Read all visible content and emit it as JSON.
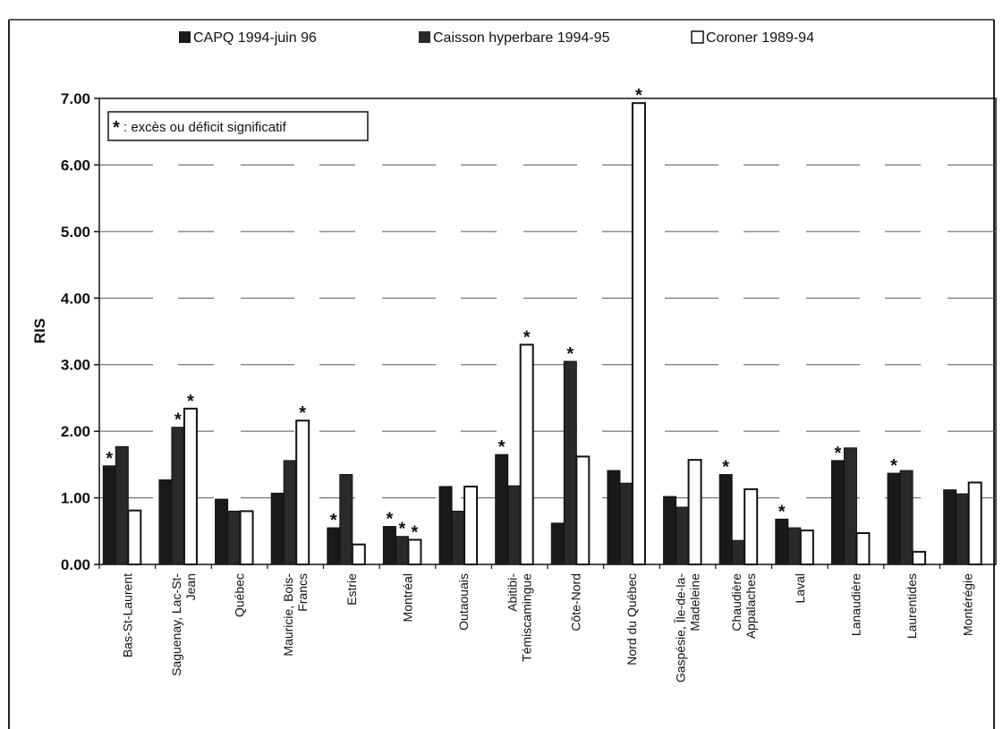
{
  "chart_data": {
    "type": "bar",
    "title": "",
    "xlabel": "",
    "ylabel": "RIS",
    "ylim": [
      0,
      7
    ],
    "yticks": [
      "0.00",
      "1.00",
      "2.00",
      "3.00",
      "4.00",
      "5.00",
      "6.00",
      "7.00"
    ],
    "grid": true,
    "legend_position": "top",
    "annotation": {
      "symbol": "*",
      "text": ": excès ou déficit significatif"
    },
    "categories": [
      "Bas-St-Laurent",
      "Saguenay, Lac-St-Jean",
      "Québec",
      "Mauricie, Bois-Francs",
      "Estrie",
      "Montréal",
      "Outaouais",
      "Abitibi-Témiscamingue",
      "Côte-Nord",
      "Nord du Québec",
      "Gaspésie, Île-de-la-Madeleine",
      "Chaudière Appalaches",
      "Laval",
      "Lanaudière",
      "Laurentides",
      "Montérégie"
    ],
    "category_lines": [
      [
        "Bas-St-Laurent"
      ],
      [
        "Saguenay, Lac-St-",
        "Jean"
      ],
      [
        "Québec"
      ],
      [
        "Mauricie, Bois-",
        "Francs"
      ],
      [
        "Estrie"
      ],
      [
        "Montréal"
      ],
      [
        "Outaouais"
      ],
      [
        "Abitibi-",
        "Témiscamingue"
      ],
      [
        "Côte-Nord"
      ],
      [
        "Nord du Québec"
      ],
      [
        "Gaspésie, Île-de-la-",
        "Madeleine"
      ],
      [
        "Chaudière",
        "Appalaches"
      ],
      [
        "Laval"
      ],
      [
        "Lanaudière"
      ],
      [
        "Laurentides"
      ],
      [
        "Montérégie"
      ]
    ],
    "series": [
      {
        "name": "CAPQ  1994-juin 96",
        "color": "#1a1a1a",
        "values": [
          1.48,
          1.27,
          0.98,
          1.07,
          0.55,
          0.57,
          1.17,
          1.65,
          0.62,
          1.41,
          1.02,
          1.35,
          0.68,
          1.56,
          1.37,
          1.12
        ],
        "significant": [
          true,
          false,
          false,
          false,
          true,
          true,
          false,
          true,
          false,
          false,
          false,
          true,
          true,
          true,
          true,
          false
        ]
      },
      {
        "name": "Caisson hyperbare  1994-95",
        "color": "#2a2a2a",
        "values": [
          1.77,
          2.06,
          0.8,
          1.56,
          1.35,
          0.42,
          0.8,
          1.18,
          3.05,
          1.22,
          0.86,
          0.36,
          0.55,
          1.75,
          1.41,
          1.06
        ],
        "significant": [
          false,
          true,
          false,
          false,
          false,
          true,
          false,
          false,
          true,
          false,
          false,
          false,
          false,
          false,
          false,
          false
        ]
      },
      {
        "name": "Coroner 1989-94",
        "color": "#ffffff",
        "values": [
          0.81,
          2.34,
          0.8,
          2.16,
          0.3,
          0.37,
          1.17,
          3.3,
          1.62,
          6.93,
          1.57,
          1.13,
          0.51,
          0.47,
          0.19,
          1.23
        ],
        "significant": [
          false,
          true,
          false,
          true,
          false,
          true,
          false,
          true,
          false,
          true,
          false,
          false,
          false,
          false,
          false,
          false
        ]
      }
    ]
  }
}
